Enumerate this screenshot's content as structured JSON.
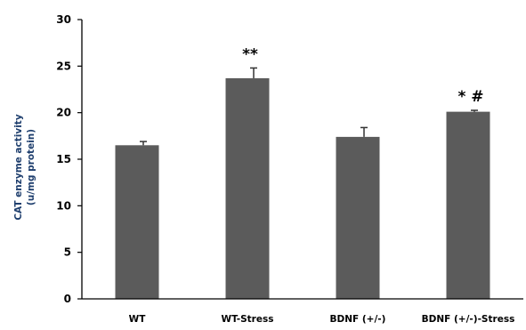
{
  "chart_data": {
    "type": "bar",
    "title": "",
    "xlabel": "",
    "ylabel": [
      "CAT enzyme activity",
      "(u/mg protein)"
    ],
    "categories": [
      "WT",
      "WT-Stress",
      "BDNF (+/-)",
      "BDNF (+/-)-Stress"
    ],
    "values": [
      16.5,
      23.7,
      17.4,
      20.1
    ],
    "errors": [
      0.4,
      1.1,
      1.0,
      0.15
    ],
    "annotations": [
      "",
      "**",
      "",
      "* #"
    ],
    "ylim": [
      0,
      30
    ],
    "yticks": [
      0,
      5,
      10,
      15,
      20,
      25,
      30
    ],
    "grid": false,
    "legend": "none",
    "bar_color": "#5b5b5b",
    "axis_title_color": "#1f3f6e"
  }
}
